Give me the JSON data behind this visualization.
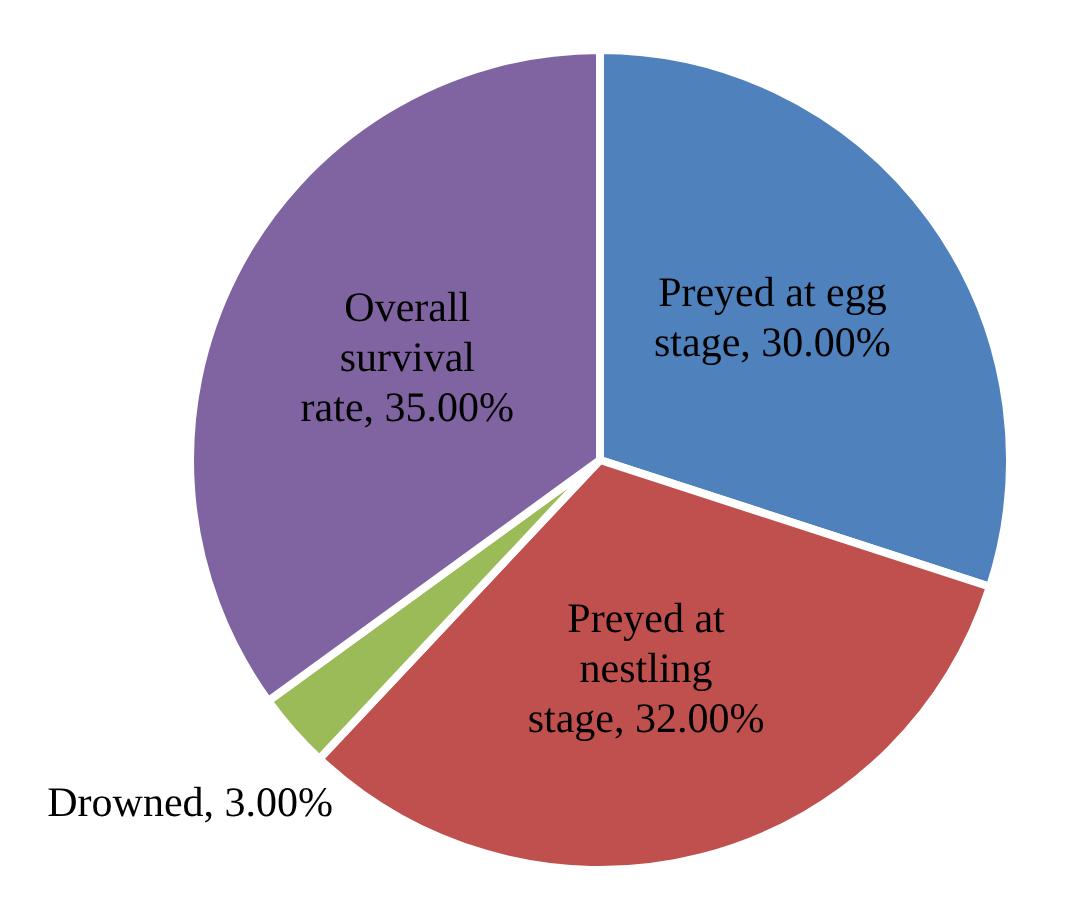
{
  "chart_data": {
    "type": "pie",
    "categories": [
      "Preyed at egg stage",
      "Preyed at nestling stage",
      "Drowned",
      "Overall survival rate"
    ],
    "values": [
      30,
      32,
      3,
      35
    ],
    "colors": [
      "#4f81bd",
      "#c0504d",
      "#9bbb59",
      "#8064a2"
    ],
    "value_labels": [
      "30.00%",
      "32.00%",
      "3.00%",
      "35.00%"
    ],
    "legend": false
  }
}
